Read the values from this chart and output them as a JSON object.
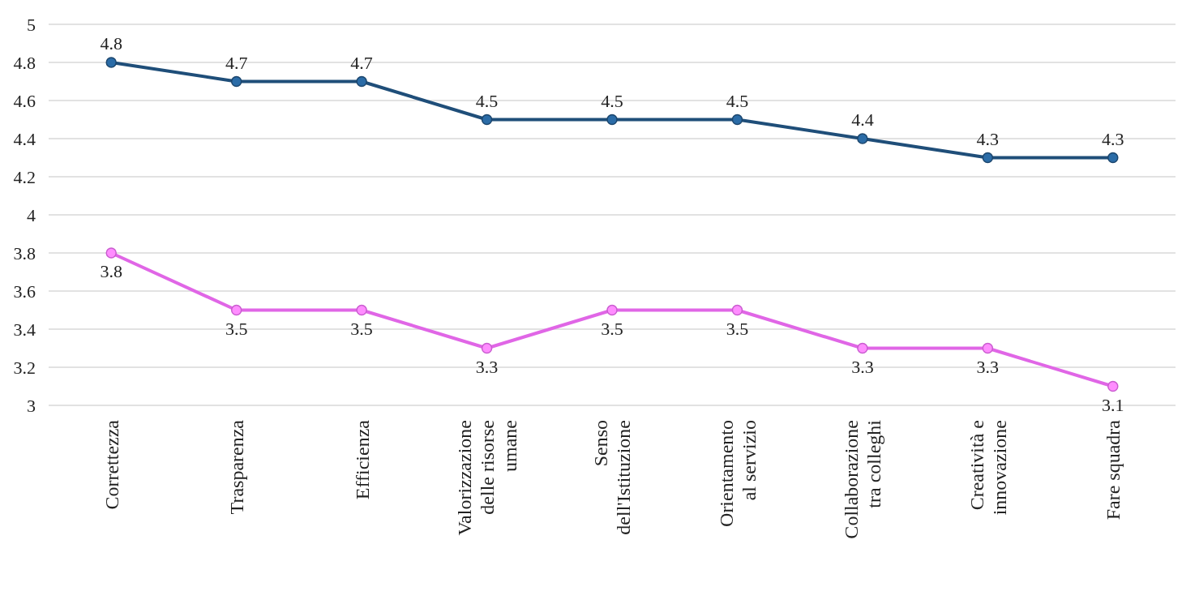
{
  "chart_data": {
    "type": "line",
    "categories": [
      "Correttezza",
      "Trasparenza",
      "Efficienza",
      "Valorizzazione delle risorse umane",
      "Senso dell'Istituzione",
      "Orientamento al servizio",
      "Collaborazione tra colleghi",
      "Creatività e innovazione",
      "Fare squadra"
    ],
    "series": [
      {
        "color": "#1f4e79",
        "values": [
          4.8,
          4.7,
          4.7,
          4.5,
          4.5,
          4.5,
          4.4,
          4.3,
          4.3
        ]
      },
      {
        "color": "#e066e6",
        "values": [
          3.8,
          3.5,
          3.5,
          3.3,
          3.5,
          3.5,
          3.3,
          3.3,
          3.1
        ]
      }
    ],
    "ylim": [
      3,
      5
    ],
    "yticks": [
      3,
      3.2,
      3.4,
      3.6,
      3.8,
      4,
      4.2,
      4.4,
      4.6,
      4.8,
      5
    ],
    "grid": "y",
    "marker": "circle",
    "line_style": "solid",
    "data_labels": true
  }
}
